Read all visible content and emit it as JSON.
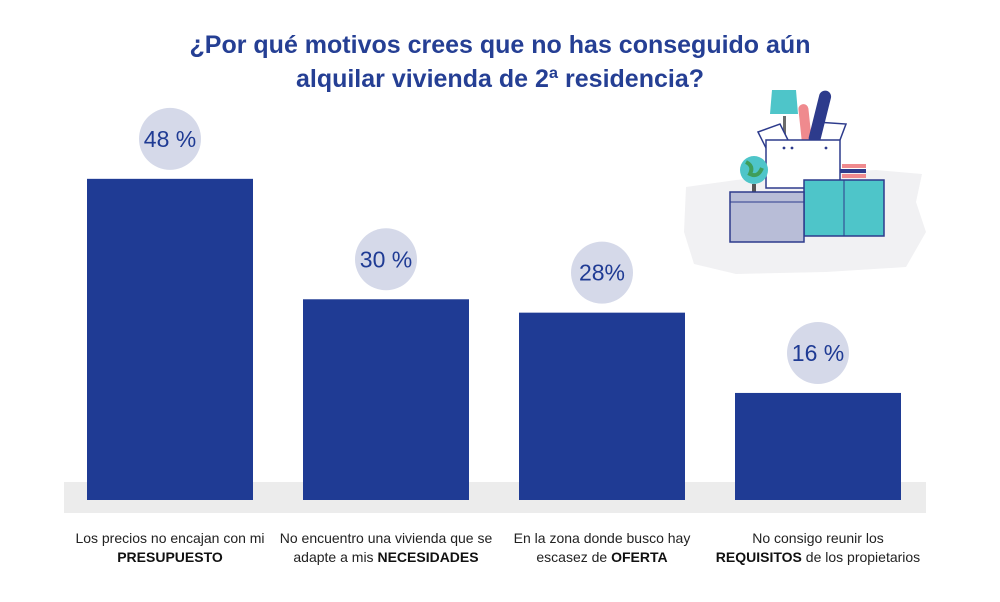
{
  "chart_data": {
    "type": "bar",
    "title_lines": [
      "¿Por qué motivos crees que no has conseguido aún",
      "alquilar vivienda de 2ª residencia?"
    ],
    "categories": [
      {
        "text_before": "Los precios no encajan con mi ",
        "bold": "PRESUPUESTO",
        "text_after": ""
      },
      {
        "text_before": "No encuentro una vivienda que se adapte a mis ",
        "bold": "NECESIDADES",
        "text_after": ""
      },
      {
        "text_before": "En la zona donde busco hay escasez de ",
        "bold": "OFERTA",
        "text_after": ""
      },
      {
        "text_before": "No consigo reunir los ",
        "bold": "REQUISITOS",
        "text_after": " de los propietarios"
      }
    ],
    "values": [
      48,
      30,
      28,
      16
    ],
    "value_labels": [
      "48 %",
      "30 %",
      "28%",
      "16 %"
    ],
    "unit": "%",
    "ylim": [
      0,
      55
    ],
    "xlabel": "",
    "ylabel": "",
    "legend": "none",
    "grid": false
  },
  "colors": {
    "bar": "#1f3b94",
    "bubble": "#d5d9e9",
    "title": "#253f94",
    "baseline_band": "#ececec",
    "label_text": "#222222"
  }
}
